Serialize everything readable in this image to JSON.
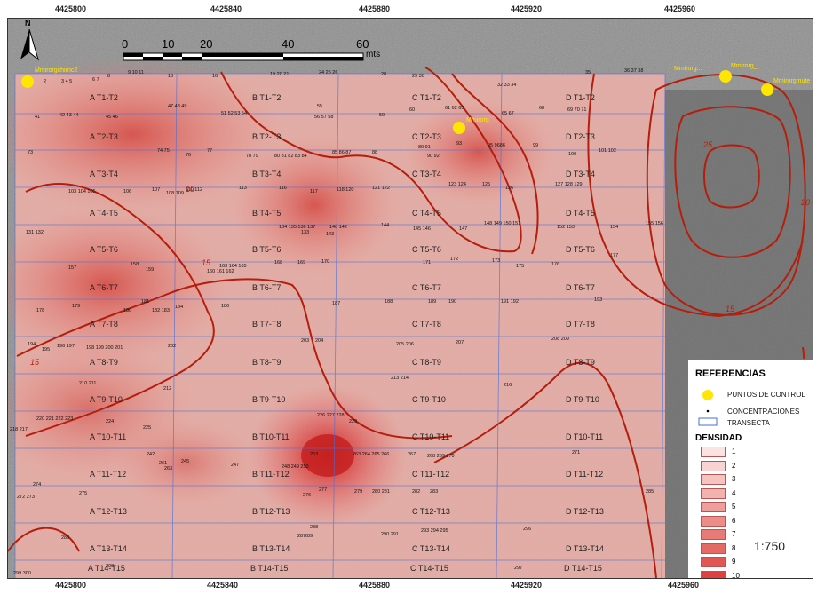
{
  "map": {
    "north_label": "N",
    "scale_unit": "mts",
    "scale_ticks": [
      "0",
      "10",
      "20",
      "40",
      "60"
    ],
    "scale_ratio": "1:750",
    "x_coords": [
      "4425800",
      "4425840",
      "4425880",
      "4425920",
      "4425960"
    ],
    "colors": {
      "isoline": "#b51e0c",
      "transect": "#4a6fd8",
      "control_point": "#ffe600",
      "density_max": "#e04040"
    }
  },
  "transects": [
    {
      "col": "A",
      "labels": [
        "A T1-T2",
        "A T2-T3",
        "A T3-T4",
        "A T4-T5",
        "A T5-T6",
        "A T6-T7",
        "A T7-T8",
        "A T8-T9",
        "A T9-T10",
        "A T10-T11",
        "A T11-T12",
        "A T12-T13",
        "A T13-T14",
        "A T14-T15"
      ]
    },
    {
      "col": "B",
      "labels": [
        "B T1-T2",
        "B T2-T3",
        "B T3-T4",
        "B T4-T5",
        "B T5-T6",
        "B T6-T7",
        "B T7-T8",
        "B T8-T9",
        "B T9-T10",
        "B T10-T11",
        "B T11-T12",
        "B T12-T13",
        "B T13-T14",
        "B T14-T15"
      ]
    },
    {
      "col": "C",
      "labels": [
        "C T1-T2",
        "C T2-T3",
        "C T3-T4",
        "C T4-T5",
        "C T5-T6",
        "C T6-T7",
        "C T7-T8",
        "C T8-T9",
        "C T9-T10",
        "C T10-T11",
        "C T11-T12",
        "C T12-T13",
        "C T13-T14",
        "C T14-T15"
      ]
    },
    {
      "col": "D",
      "labels": [
        "D T1-T2",
        "D T2-T3",
        "D T3-T4",
        "D T4-T5",
        "D T5-T6",
        "D T6-T7",
        "D T7-T8",
        "D T8-T9",
        "D T9-T10",
        "D T10-T11",
        "D T11-T12",
        "D T12-T13",
        "D T13-T14",
        "D T14-T15"
      ]
    }
  ],
  "control_points": [
    {
      "name": "Mmirorgchirnc2",
      "value": ""
    },
    {
      "name": "Mmirorg",
      "value": ""
    },
    {
      "name": "Mmirorg..."
    },
    {
      "name": "Mmirorg_"
    },
    {
      "name": "Mmirorgmute"
    }
  ],
  "isoline_labels": [
    "10",
    "15",
    "15",
    "15",
    "20",
    "25"
  ],
  "legend": {
    "title": "REFERENCIAS",
    "control_points": "PUNTOS DE CONTROL",
    "concentrations": "CONCENTRACIONES",
    "transect": "TRANSECTA",
    "density_title": "DENSIDAD",
    "classes": [
      "1",
      "2",
      "3",
      "4",
      "5",
      "6",
      "7",
      "8",
      "9",
      "10"
    ],
    "class_colors": [
      "#fbe3e2",
      "#f8d3d1",
      "#f5c3c0",
      "#f2b3af",
      "#ef9f9b",
      "#eb8d88",
      "#e87b76",
      "#e56964",
      "#e25653",
      "#e04040"
    ]
  }
}
